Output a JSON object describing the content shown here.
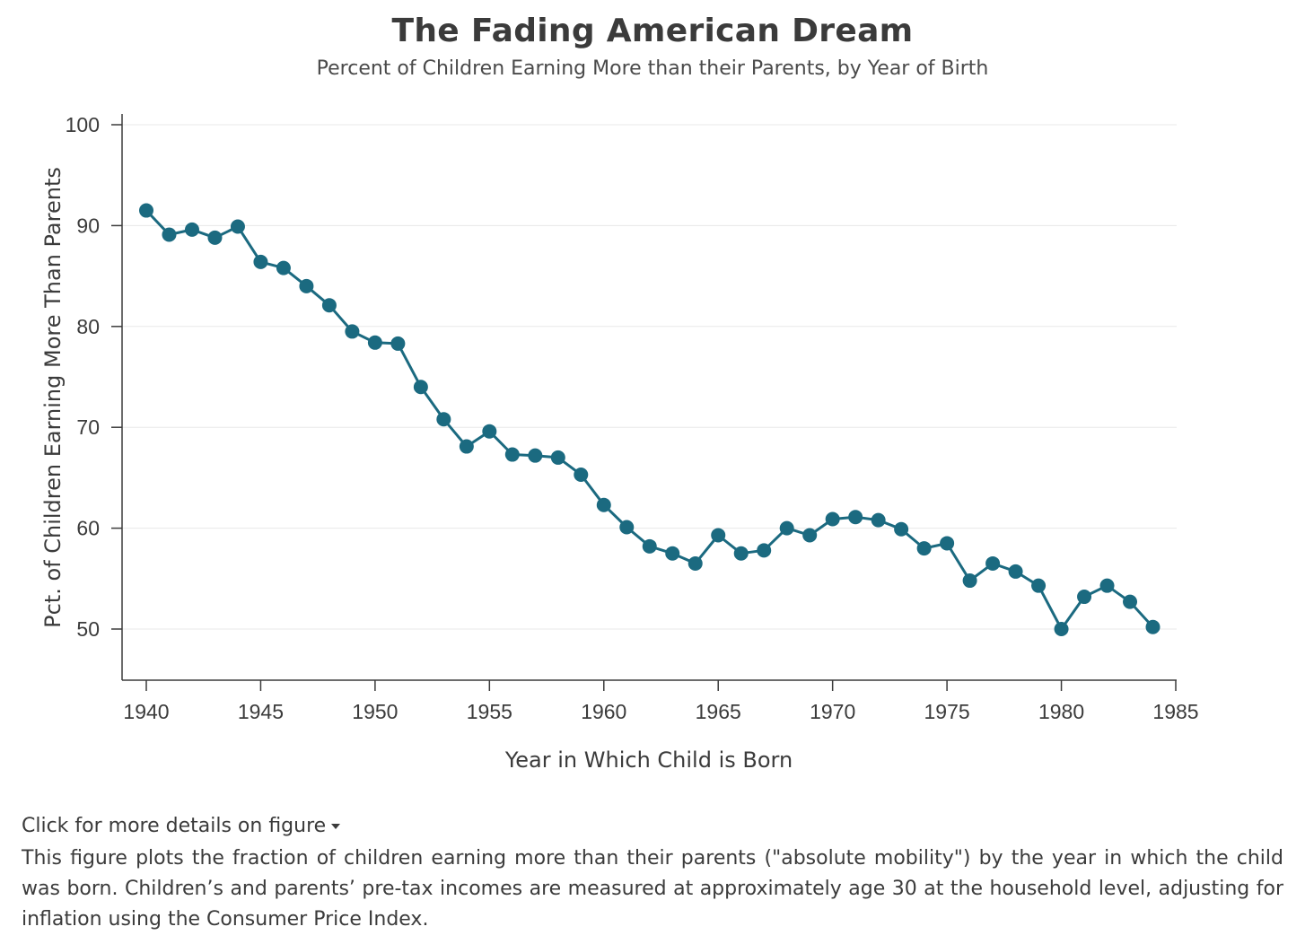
{
  "chart_data": {
    "type": "line",
    "title": "The Fading American Dream",
    "subtitle": "Percent of Children Earning More than their Parents, by Year of Birth",
    "xlabel": "Year in Which Child is Born",
    "ylabel": "Pct. of Children Earning More Than Parents",
    "xlim": [
      1939,
      1985
    ],
    "ylim": [
      45,
      101
    ],
    "xticks": [
      1940,
      1945,
      1950,
      1955,
      1960,
      1965,
      1970,
      1975,
      1980,
      1985
    ],
    "yticks": [
      50,
      60,
      70,
      80,
      90,
      100
    ],
    "grid": "horizontal",
    "color": "#1b6a80",
    "series": [
      {
        "x": [
          1940,
          1941,
          1942,
          1943,
          1944,
          1945,
          1946,
          1947,
          1948,
          1949,
          1950,
          1951,
          1952,
          1953,
          1954,
          1955,
          1956,
          1957,
          1958,
          1959,
          1960,
          1961,
          1962,
          1963,
          1964,
          1965,
          1966,
          1967,
          1968,
          1969,
          1970,
          1971,
          1972,
          1973,
          1974,
          1975,
          1976,
          1977,
          1978,
          1979,
          1980,
          1981,
          1982,
          1983,
          1984
        ],
        "y": [
          91.5,
          89.1,
          89.6,
          88.8,
          89.9,
          86.4,
          85.8,
          84.0,
          82.1,
          79.5,
          78.4,
          78.3,
          74.0,
          70.8,
          68.1,
          69.6,
          67.3,
          67.2,
          67.0,
          65.3,
          62.3,
          60.1,
          58.2,
          57.5,
          56.5,
          59.3,
          57.5,
          57.8,
          60.0,
          59.3,
          60.9,
          61.1,
          60.8,
          59.9,
          58.0,
          58.5,
          54.8,
          56.5,
          55.7,
          54.3,
          50.0,
          53.2,
          54.3,
          52.7,
          50.2
        ]
      }
    ]
  },
  "details": {
    "toggle_label": "Click for more details on figure",
    "text": "This figure plots the fraction of children earning more than their parents (\"absolute mobility\") by the year in which the child was born. Children’s and parents’ pre-tax incomes are measured at approximately age 30 at the household level, adjusting for inflation using the Consumer Price Index."
  }
}
